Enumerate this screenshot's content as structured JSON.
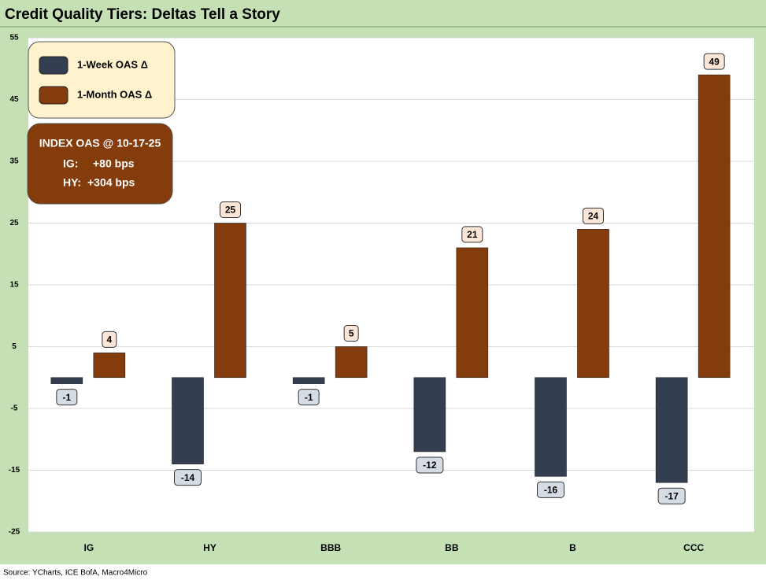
{
  "chart_data": {
    "type": "bar",
    "title": "Credit Quality Tiers: Deltas Tell a Story",
    "categories": [
      "IG",
      "HY",
      "BBB",
      "BB",
      "B",
      "CCC"
    ],
    "series": [
      {
        "name": "1-Week OAS Δ",
        "color": "#333f50",
        "values": [
          -1,
          -14,
          -1,
          -12,
          -16,
          -17
        ]
      },
      {
        "name": "1-Month OAS Δ",
        "color": "#843c0c",
        "values": [
          4,
          25,
          5,
          21,
          24,
          49
        ]
      }
    ],
    "ylim": [
      -25,
      55
    ],
    "yticks": [
      -25,
      -15,
      -5,
      5,
      15,
      25,
      35,
      45,
      55
    ],
    "grid": true,
    "legend_position": "upper left",
    "annotation": {
      "title": "INDEX OAS @ 10-17-25",
      "rows": [
        [
          "IG:",
          "+80 bps"
        ],
        [
          "HY:",
          "+304 bps"
        ]
      ]
    },
    "source": "Source: YCharts, ICE BofA, Macro4Micro"
  }
}
